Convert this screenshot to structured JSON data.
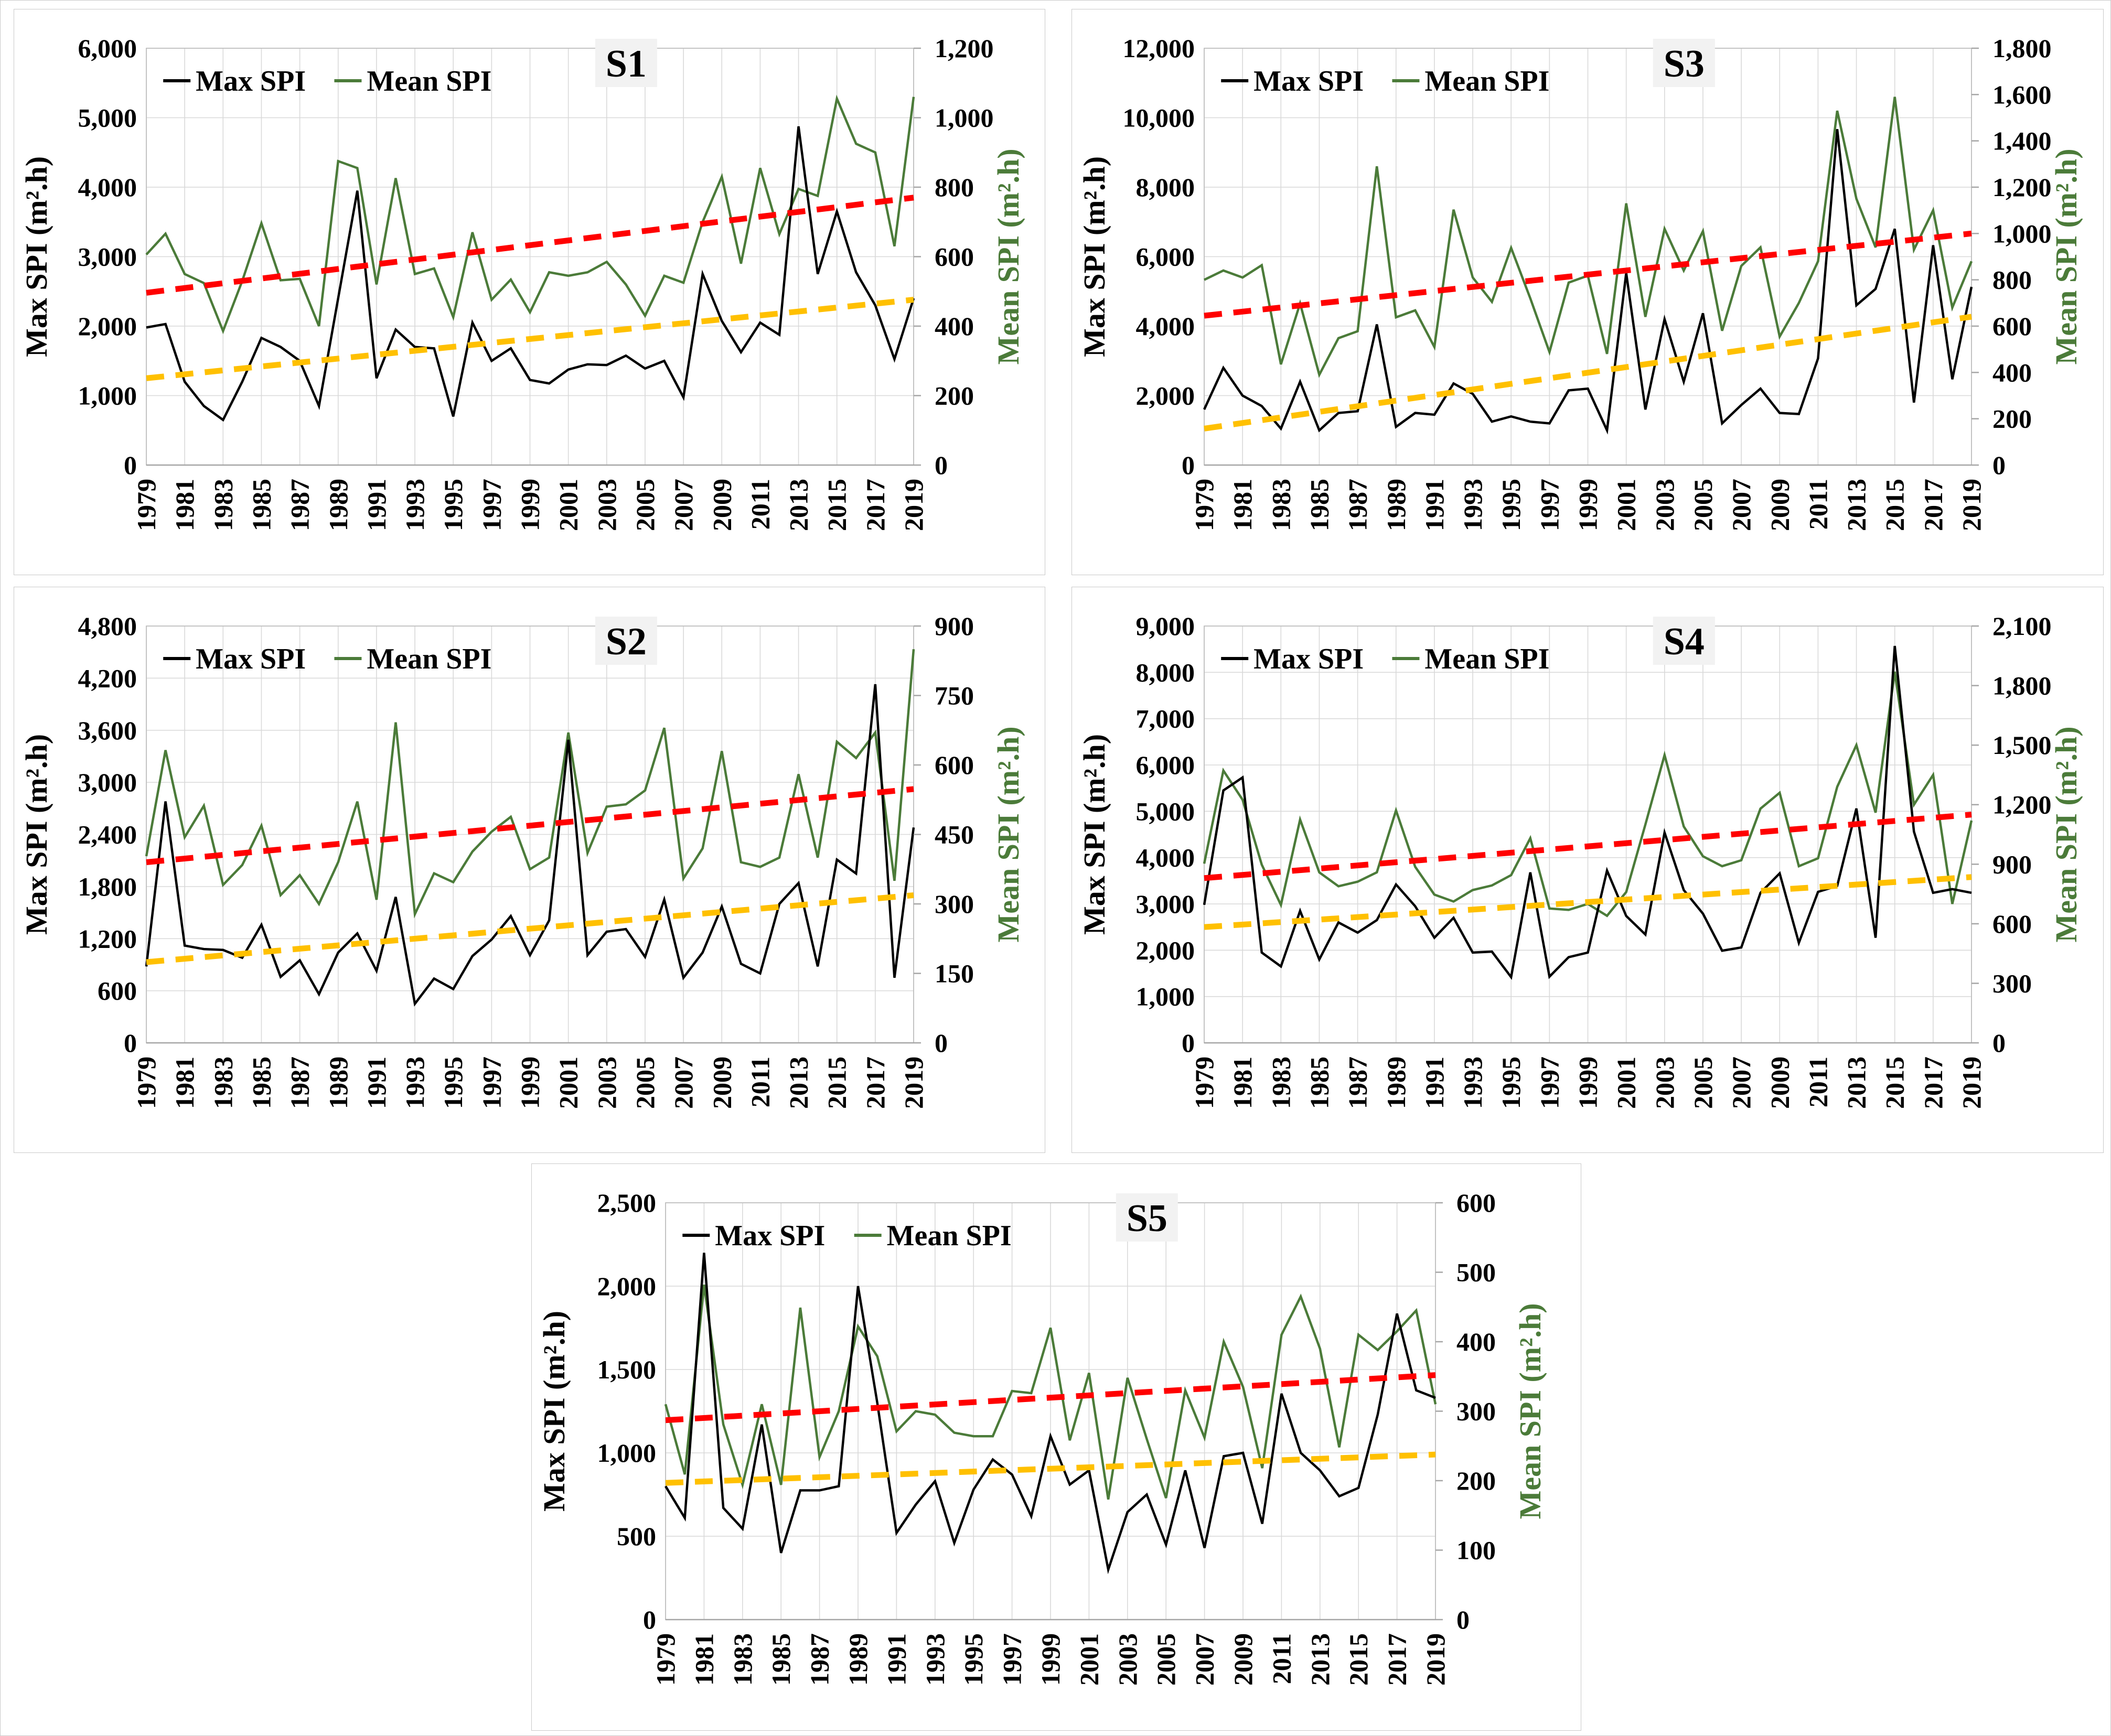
{
  "figure_title": "",
  "colors": {
    "max_line": "#000000",
    "mean_line": "#4b7b39",
    "trend_mean": "#ff0000",
    "trend_max": "#ffc000",
    "grid": "#d9d9d9",
    "axis_line": "#a6a6a6",
    "plot_border": "#bfbfbf",
    "title_bg": "#f2f2f2",
    "text": "#000000"
  },
  "years": [
    1979,
    1980,
    1981,
    1982,
    1983,
    1984,
    1985,
    1986,
    1987,
    1988,
    1989,
    1990,
    1991,
    1992,
    1993,
    1994,
    1995,
    1996,
    1997,
    1998,
    1999,
    2000,
    2001,
    2002,
    2003,
    2004,
    2005,
    2006,
    2007,
    2008,
    2009,
    2010,
    2011,
    2012,
    2013,
    2014,
    2015,
    2016,
    2017,
    2018,
    2019
  ],
  "x_ticks": [
    "1979",
    "1981",
    "1983",
    "1985",
    "1987",
    "1989",
    "1991",
    "1993",
    "1995",
    "1997",
    "1999",
    "2001",
    "2003",
    "2005",
    "2007",
    "2009",
    "2011",
    "2013",
    "2015",
    "2017",
    "2019"
  ],
  "chart_data": [
    {
      "type": "line",
      "id": "S1",
      "title": "S1",
      "legend": [
        "Max SPI",
        "Mean SPI"
      ],
      "ylabel_left": "Max SPI (m².h)",
      "ylabel_right": "Mean SPI (m².h)",
      "left_axis": {
        "min": 0,
        "max": 6000,
        "step": 1000,
        "ticks": [
          "0",
          "1,000",
          "2,000",
          "3,000",
          "4,000",
          "5,000",
          "6,000"
        ]
      },
      "right_axis": {
        "min": 0,
        "max": 1200,
        "step": 200,
        "ticks": [
          "0",
          "200",
          "400",
          "600",
          "800",
          "1,000",
          "1,200"
        ]
      },
      "max_spi_left_axis": [
        1980,
        2030,
        1200,
        850,
        650,
        1200,
        1830,
        1700,
        1500,
        850,
        2400,
        3950,
        1250,
        1950,
        1700,
        1680,
        700,
        2050,
        1500,
        1680,
        1225,
        1175,
        1375,
        1450,
        1440,
        1575,
        1390,
        1500,
        975,
        2750,
        2075,
        1625,
        2050,
        1875,
        4875,
        2750,
        3650,
        2775,
        2300,
        1525,
        2400
      ],
      "mean_spi_right_axis": [
        606,
        666,
        550,
        524,
        386,
        530,
        696,
        532,
        536,
        400,
        875,
        855,
        520,
        826,
        550,
        566,
        426,
        670,
        476,
        534,
        440,
        555,
        545,
        555,
        585,
        520,
        430,
        545,
        525,
        700,
        830,
        580,
        855,
        665,
        795,
        775,
        1055,
        925,
        900,
        630,
        1060
      ],
      "trend_max_left_axis": [
        1250,
        2380
      ],
      "trend_mean_right_axis": [
        496,
        770
      ]
    },
    {
      "type": "line",
      "id": "S2",
      "title": "S2",
      "legend": [
        "Max SPI",
        "Mean SPI"
      ],
      "ylabel_left": "Max SPI (m².h)",
      "ylabel_right": "Mean SPI (m².h)",
      "left_axis": {
        "min": 0,
        "max": 4800,
        "step": 600,
        "ticks": [
          "0",
          "600",
          "1,200",
          "1,800",
          "2,400",
          "3,000",
          "3,600",
          "4,200",
          "4,800"
        ]
      },
      "right_axis": {
        "min": 0,
        "max": 900,
        "step": 150,
        "ticks": [
          "0",
          "150",
          "300",
          "450",
          "600",
          "750",
          "900"
        ]
      },
      "max_spi_left_axis": [
        880,
        2780,
        1120,
        1080,
        1070,
        980,
        1360,
        760,
        950,
        560,
        1040,
        1260,
        830,
        1680,
        450,
        740,
        620,
        1000,
        1190,
        1460,
        1010,
        1410,
        3490,
        1010,
        1280,
        1310,
        990,
        1650,
        750,
        1040,
        1570,
        910,
        800,
        1600,
        1840,
        880,
        2110,
        1950,
        4130,
        750,
        2480
      ],
      "mean_spi_right_axis": [
        403,
        632,
        444,
        512,
        341,
        384,
        469,
        319,
        362,
        300,
        390,
        521,
        309,
        692,
        278,
        366,
        347,
        413,
        456,
        488,
        375,
        400,
        670,
        410,
        510,
        515,
        545,
        680,
        355,
        420,
        630,
        390,
        380,
        400,
        580,
        400,
        650,
        615,
        670,
        350,
        850
      ],
      "trend_max_left_axis": [
        930,
        1700
      ],
      "trend_mean_right_axis": [
        390,
        548
      ]
    },
    {
      "type": "line",
      "id": "S3",
      "title": "S3",
      "legend": [
        "Max SPI",
        "Mean SPI"
      ],
      "ylabel_left": "Max SPI (m².h)",
      "ylabel_right": "Mean SPI (m².h)",
      "left_axis": {
        "min": 0,
        "max": 12000,
        "step": 2000,
        "ticks": [
          "0",
          "2,000",
          "4,000",
          "6,000",
          "8,000",
          "10,000",
          "12,000"
        ]
      },
      "right_axis": {
        "min": 0,
        "max": 1800,
        "step": 200,
        "ticks": [
          "0",
          "200",
          "400",
          "600",
          "800",
          "1,000",
          "1,200",
          "1,400",
          "1,600",
          "1,800"
        ]
      },
      "max_spi_left_axis": [
        1600,
        2800,
        2000,
        1700,
        1050,
        2400,
        1000,
        1500,
        1550,
        4050,
        1100,
        1500,
        1450,
        2350,
        2050,
        1250,
        1400,
        1250,
        1200,
        2150,
        2200,
        1000,
        5530,
        1600,
        4200,
        2400,
        4370,
        1200,
        1730,
        2200,
        1500,
        1470,
        3070,
        9670,
        4600,
        5070,
        6800,
        1800,
        6330,
        2470,
        5130
      ],
      "mean_spi_right_axis": [
        800,
        840,
        810,
        863,
        435,
        698,
        390,
        548,
        578,
        1290,
        638,
        668,
        510,
        1103,
        810,
        705,
        938,
        720,
        488,
        788,
        818,
        480,
        1130,
        640,
        1020,
        840,
        1010,
        580,
        860,
        940,
        555,
        700,
        880,
        1530,
        1150,
        940,
        1590,
        930,
        1100,
        680,
        880
      ],
      "trend_max_left_axis": [
        1050,
        4270
      ],
      "trend_mean_right_axis": [
        645,
        1000
      ]
    },
    {
      "type": "line",
      "id": "S4",
      "title": "S4",
      "legend": [
        "Max SPI",
        "Mean SPI"
      ],
      "ylabel_left": "Max SPI (m².h)",
      "ylabel_right": "Mean SPI (m².h)",
      "left_axis": {
        "min": 0,
        "max": 9000,
        "step": 1000,
        "ticks": [
          "0",
          "1,000",
          "2,000",
          "3,000",
          "4,000",
          "5,000",
          "6,000",
          "7,000",
          "8,000",
          "9,000"
        ]
      },
      "right_axis": {
        "min": 0,
        "max": 2100,
        "step": 300,
        "ticks": [
          "0",
          "300",
          "600",
          "900",
          "1,200",
          "1,500",
          "1,800",
          "2,100"
        ]
      },
      "max_spi_left_axis": [
        2980,
        5450,
        5730,
        1950,
        1650,
        2850,
        1800,
        2600,
        2380,
        2650,
        3420,
        2950,
        2270,
        2700,
        1950,
        1970,
        1420,
        3680,
        1430,
        1850,
        1950,
        3720,
        2740,
        2340,
        4540,
        3300,
        2790,
        1990,
        2060,
        3240,
        3660,
        2160,
        3260,
        3390,
        5060,
        2270,
        8570,
        4560,
        3240,
        3320,
        3240
      ],
      "mean_spi_right_axis": [
        903,
        1372,
        1225,
        898,
        695,
        1125,
        859,
        789,
        812,
        859,
        1171,
        887,
        747,
        712,
        770,
        793,
        845,
        1031,
        677,
        670,
        700,
        640,
        760,
        1100,
        1450,
        1090,
        940,
        890,
        920,
        1180,
        1260,
        890,
        930,
        1290,
        1500,
        1160,
        1870,
        1200,
        1350,
        700,
        1120
      ],
      "trend_max_left_axis": [
        2500,
        3580
      ],
      "trend_mean_right_axis": [
        830,
        1150
      ]
    },
    {
      "type": "line",
      "id": "S5",
      "title": "S5",
      "legend": [
        "Max SPI",
        "Mean SPI"
      ],
      "ylabel_left": "Max SPI (m².h)",
      "ylabel_right": "Mean SPI (m².h)",
      "left_axis": {
        "min": 0,
        "max": 2500,
        "step": 500,
        "ticks": [
          "0",
          "500",
          "1,000",
          "1,500",
          "2,000",
          "2,500"
        ]
      },
      "right_axis": {
        "min": 0,
        "max": 600,
        "step": 100,
        "ticks": [
          "0",
          "100",
          "200",
          "300",
          "400",
          "500",
          "600"
        ]
      },
      "max_spi_left_axis": [
        800,
        610,
        2200,
        670,
        545,
        1170,
        400,
        775,
        775,
        800,
        2000,
        1300,
        520,
        690,
        830,
        460,
        780,
        960,
        870,
        620,
        1100,
        810,
        895,
        300,
        645,
        750,
        450,
        895,
        430,
        980,
        1000,
        575,
        1355,
        1000,
        895,
        740,
        790,
        1230,
        1835,
        1375,
        1330
      ],
      "mean_spi_right_axis": [
        310,
        209,
        482,
        281,
        194,
        310,
        194,
        449,
        234,
        300,
        422,
        379,
        271,
        300,
        295,
        269,
        264,
        264,
        329,
        326,
        420,
        258,
        355,
        173,
        348,
        260,
        175,
        330,
        262,
        400,
        335,
        218,
        410,
        465,
        390,
        248,
        410,
        388,
        415,
        445,
        310
      ],
      "trend_max_left_axis": [
        820,
        990
      ],
      "trend_mean_right_axis": [
        287,
        352
      ]
    }
  ]
}
